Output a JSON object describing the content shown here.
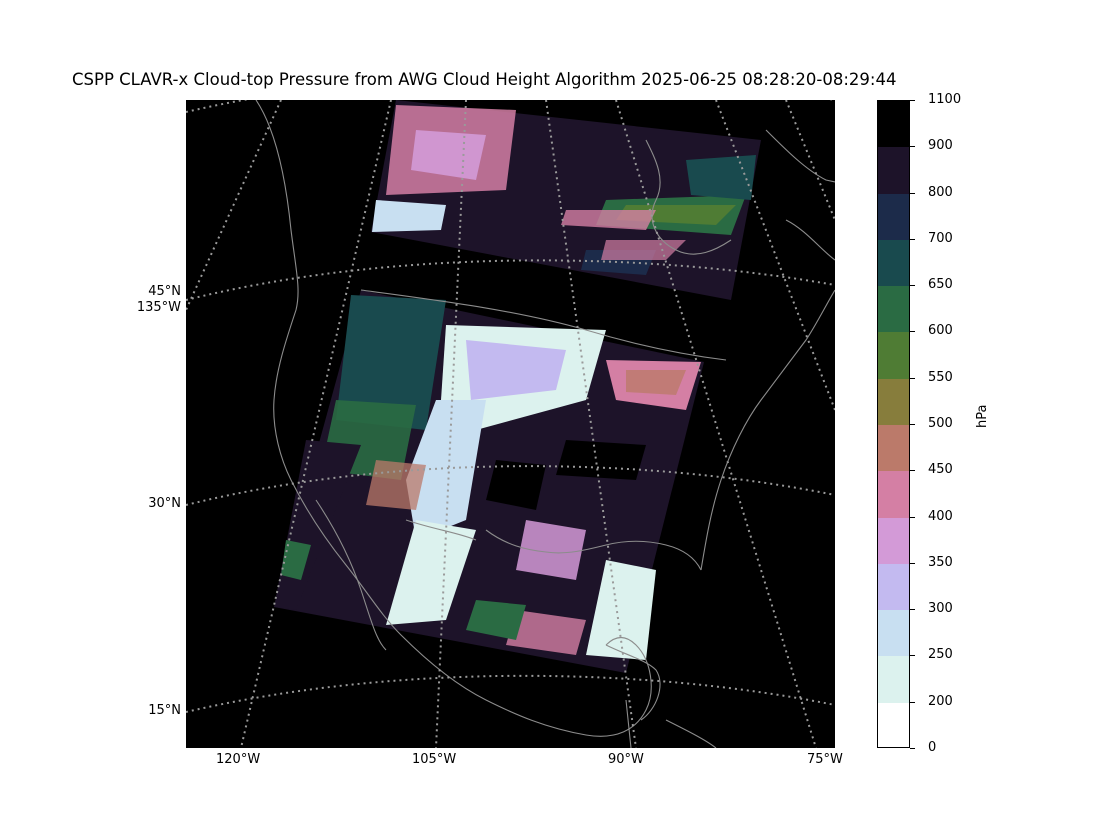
{
  "figure": {
    "title": "CSPP CLAVR-x Cloud-top Pressure from AWG Cloud Height Algorithm 2025-06-25 08:28:20-08:29:44"
  },
  "map": {
    "background_color": "#000000",
    "gridline_color": "#9a9a9a",
    "coastline_color": "#8c8c8c",
    "lat_labels": [
      "45°N\n135°W",
      "30°N",
      "15°N"
    ],
    "lon_labels": [
      "120°W",
      "105°W",
      "90°W",
      "75°W"
    ]
  },
  "colorbar": {
    "label": "hPa",
    "ticks": [
      "1100",
      "900",
      "800",
      "700",
      "650",
      "600",
      "550",
      "500",
      "450",
      "400",
      "350",
      "300",
      "250",
      "200",
      "0"
    ],
    "colors": [
      "#000000",
      "#1d1329",
      "#1c2b4a",
      "#194a4e",
      "#2a6b43",
      "#4f7c34",
      "#877d3c",
      "#bb7a6a",
      "#d47fa4",
      "#d39ad7",
      "#c3baf0",
      "#c8dff1",
      "#dcf2ee",
      "#ffffff"
    ]
  }
}
